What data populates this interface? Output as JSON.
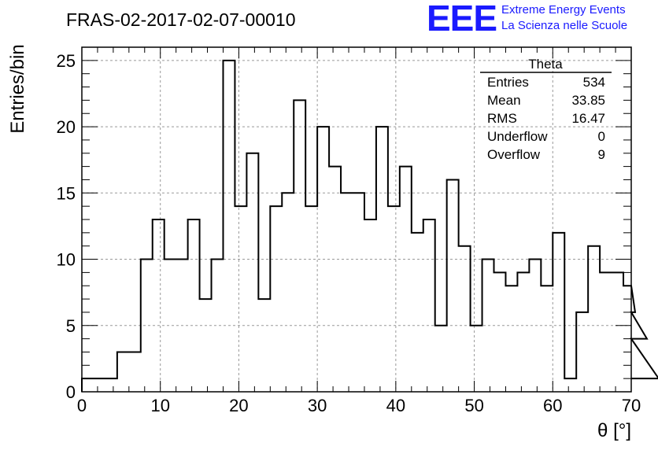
{
  "chart_data": {
    "type": "histogram",
    "title": "FRAS-02-2017-02-07-00010",
    "xlabel": "θ [°]",
    "ylabel": "Entries/bin",
    "xlim": [
      0,
      70
    ],
    "ylim": [
      0,
      26
    ],
    "x_ticks": [
      "0",
      "10",
      "20",
      "30",
      "40",
      "50",
      "60",
      "70"
    ],
    "y_ticks": [
      "0",
      "5",
      "10",
      "15",
      "20",
      "25"
    ],
    "grid": true,
    "bin_width": 1.5,
    "values": [
      1,
      1,
      1,
      3,
      3,
      10,
      13,
      10,
      10,
      13,
      7,
      10,
      25,
      14,
      18,
      7,
      14,
      15,
      22,
      14,
      20,
      17,
      15,
      15,
      13,
      20,
      14,
      17,
      12,
      13,
      5,
      16,
      11,
      5,
      10,
      9,
      8,
      9,
      10,
      8,
      12,
      1,
      6,
      11,
      9,
      9,
      8,
      6,
      4,
      1
    ],
    "series": [
      {
        "name": "Theta"
      }
    ]
  },
  "stats": {
    "title": "Theta",
    "rows": [
      {
        "label": "Entries",
        "value": "534"
      },
      {
        "label": "Mean",
        "value": "33.85"
      },
      {
        "label": "RMS",
        "value": "16.47"
      },
      {
        "label": "Underflow",
        "value": "0"
      },
      {
        "label": "Overflow",
        "value": "9"
      }
    ]
  },
  "logo": {
    "mark": "EEE",
    "line1": "Extreme Energy Events",
    "line2": "La Scienza nelle Scuole"
  },
  "colors": {
    "histogram": "#000000",
    "grid": "#999999",
    "logo": "#1a1aff"
  }
}
